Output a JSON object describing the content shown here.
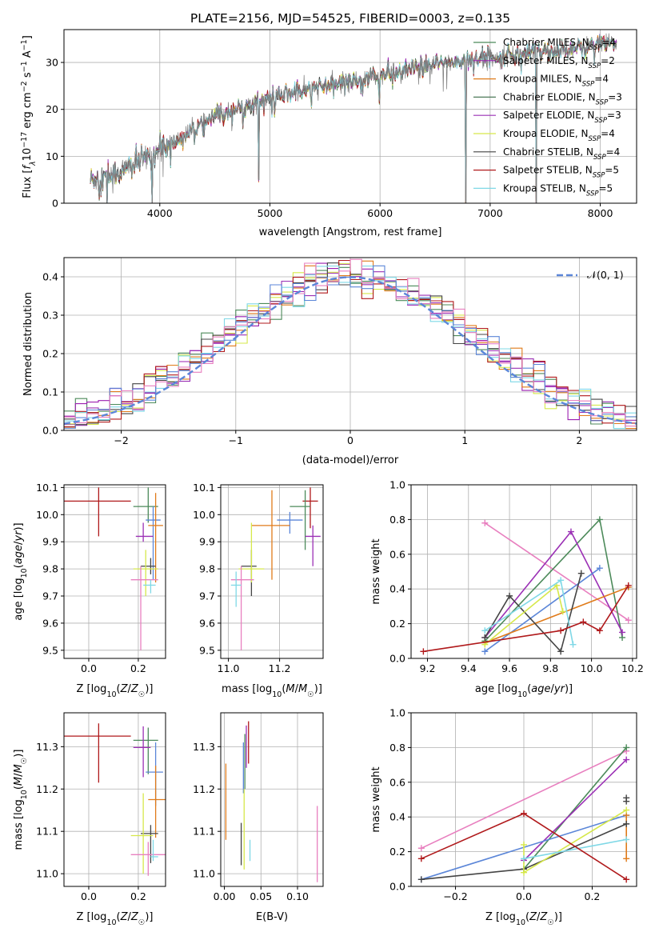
{
  "figure_title": "PLATE=2156, MJD=54525, FIBERID=0003, z=0.135",
  "colors": {
    "chabrier_miles": "#4c8a5a",
    "salpeter_miles": "#9b1fb0",
    "kroupa_miles": "#e07b1a",
    "chabrier_elodie": "#4e7a5a",
    "salpeter_elodie": "#9b30b5",
    "kroupa_elodie": "#d6e84a",
    "chabrier_stelib": "#444444",
    "salpeter_stelib": "#b0191b",
    "kroupa_stelib": "#7fd8e6",
    "blue": "#5b86d8",
    "pink": "#e87fbf",
    "normal_curve": "#5b86d8",
    "grid": "#b0b0b0"
  },
  "chart_data": [
    {
      "id": "spectrum",
      "type": "line",
      "xlabel": "wavelength [Angstrom, rest frame]",
      "ylabel": "Flux [f_λ10^-17 erg cm^-2 s^-1 A^-1]",
      "xlim": [
        3130,
        8330
      ],
      "ylim": [
        0,
        37
      ],
      "xticks": [
        4000,
        5000,
        6000,
        7000,
        8000
      ],
      "yticks": [
        0,
        10,
        20,
        30
      ],
      "legend": "top-right",
      "legend_entries": [
        {
          "label": "Chabrier MILES, N",
          "sub": "SSP",
          "tail": "=4",
          "color": "chabrier_miles"
        },
        {
          "label": "Salpeter MILES, N",
          "sub": "SSP",
          "tail": "=2",
          "color": "salpeter_miles"
        },
        {
          "label": "Kroupa MILES, N",
          "sub": "SSP",
          "tail": "=4",
          "color": "kroupa_miles"
        },
        {
          "label": "Chabrier ELODIE, N",
          "sub": "SSP",
          "tail": "=3",
          "color": "chabrier_elodie"
        },
        {
          "label": "Salpeter ELODIE, N",
          "sub": "SSP",
          "tail": "=3",
          "color": "salpeter_elodie"
        },
        {
          "label": "Kroupa ELODIE, N",
          "sub": "SSP",
          "tail": "=4",
          "color": "kroupa_elodie"
        },
        {
          "label": "Chabrier STELIB, N",
          "sub": "SSP",
          "tail": "=4",
          "color": "chabrier_stelib"
        },
        {
          "label": "Salpeter STELIB, N",
          "sub": "SSP",
          "tail": "=5",
          "color": "salpeter_stelib"
        },
        {
          "label": "Kroupa STELIB, N",
          "sub": "SSP",
          "tail": "=5",
          "color": "kroupa_stelib"
        }
      ],
      "continuum_anchors": [
        [
          3400,
          5
        ],
        [
          3600,
          6.5
        ],
        [
          3800,
          8.5
        ],
        [
          4000,
          11.5
        ],
        [
          4200,
          14
        ],
        [
          4500,
          18.5
        ],
        [
          4800,
          21
        ],
        [
          5200,
          23.5
        ],
        [
          5600,
          25.5
        ],
        [
          6000,
          27.2
        ],
        [
          6500,
          29.5
        ],
        [
          7000,
          31.2
        ],
        [
          7500,
          32.5
        ],
        [
          8100,
          34
        ]
      ],
      "deep_drops": [
        [
          3520,
          0
        ],
        [
          3930,
          0
        ],
        [
          4900,
          5
        ],
        [
          6780,
          0
        ],
        [
          7420,
          0
        ]
      ]
    },
    {
      "id": "residuals",
      "type": "histogram",
      "xlabel": "(data-model)/error",
      "ylabel": "Normed distribution",
      "xlim": [
        -2.5,
        2.5
      ],
      "ylim": [
        0,
        0.45
      ],
      "xticks": [
        -2,
        -1,
        0,
        1,
        2
      ],
      "yticks": [
        0.0,
        0.1,
        0.2,
        0.3,
        0.4
      ],
      "legend": "top-right",
      "legend_label": "𝒩(0, 1)",
      "bin_width": 0.1
    },
    {
      "id": "age_vs_Z",
      "type": "errorbar",
      "xlabel": "Z [log10(Z/Z☉)]",
      "ylabel": "age  [log10(age/yr)]",
      "xlim": [
        -0.1,
        0.31
      ],
      "ylim": [
        9.47,
        10.11
      ],
      "xticks": [
        0.0,
        0.2
      ],
      "yticks": [
        9.5,
        9.6,
        9.7,
        9.8,
        9.9,
        10.0,
        10.1
      ],
      "points": [
        {
          "x": 0.04,
          "y": 10.05,
          "xerr": [
            0.14,
            0.13
          ],
          "yerr": [
            0.13,
            0.05
          ],
          "color": "salpeter_stelib"
        },
        {
          "x": 0.24,
          "y": 10.03,
          "xerr": [
            0.06,
            0.04
          ],
          "yerr": [
            0.06,
            0.07
          ],
          "color": "chabrier_miles"
        },
        {
          "x": 0.26,
          "y": 9.98,
          "xerr": [
            0.03,
            0.03
          ],
          "yerr": [
            0.22,
            0.05
          ],
          "color": "blue"
        },
        {
          "x": 0.27,
          "y": 9.96,
          "xerr": [
            0.03,
            0.03
          ],
          "yerr": [
            0.21,
            0.12
          ],
          "color": "kroupa_miles"
        },
        {
          "x": 0.22,
          "y": 9.92,
          "xerr": [
            0.03,
            0.04
          ],
          "yerr": [
            0.02,
            0.05
          ],
          "color": "salpeter_elodie"
        },
        {
          "x": 0.25,
          "y": 9.81,
          "xerr": [
            0.04,
            0.02
          ],
          "yerr": [
            0.03,
            0.03
          ],
          "color": "chabrier_stelib"
        },
        {
          "x": 0.23,
          "y": 9.8,
          "xerr": [
            0.05,
            0.05
          ],
          "yerr": [
            0.1,
            0.07
          ],
          "color": "kroupa_elodie"
        },
        {
          "x": 0.21,
          "y": 9.76,
          "xerr": [
            0.04,
            0.07
          ],
          "yerr": [
            0.26,
            0.05
          ],
          "color": "pink"
        },
        {
          "x": 0.25,
          "y": 9.74,
          "xerr": [
            0.03,
            0.02
          ],
          "yerr": [
            0.03,
            0.02
          ],
          "color": "kroupa_stelib"
        }
      ]
    },
    {
      "id": "age_vs_mass",
      "type": "errorbar",
      "xlabel": "mass [log10(M/M☉)]",
      "ylabel": "",
      "xlim": [
        10.97,
        11.37
      ],
      "ylim": [
        9.47,
        10.11
      ],
      "xticks": [
        11.0,
        11.2
      ],
      "yticks": [
        9.5,
        9.6,
        9.7,
        9.8,
        9.9,
        10.0,
        10.1
      ],
      "points": [
        {
          "x": 11.32,
          "y": 10.05,
          "xerr": [
            0.03,
            0.03
          ],
          "yerr": [
            0.1,
            0.05
          ],
          "color": "salpeter_stelib"
        },
        {
          "x": 11.3,
          "y": 10.03,
          "xerr": [
            0.06,
            0.02
          ],
          "yerr": [
            0.16,
            0.06
          ],
          "color": "chabrier_miles"
        },
        {
          "x": 11.24,
          "y": 9.98,
          "xerr": [
            0.05,
            0.05
          ],
          "yerr": [
            0.05,
            0.03
          ],
          "color": "blue"
        },
        {
          "x": 11.17,
          "y": 9.96,
          "xerr": [
            0.08,
            0.07
          ],
          "yerr": [
            0.2,
            0.13
          ],
          "color": "kroupa_miles"
        },
        {
          "x": 11.33,
          "y": 9.92,
          "xerr": [
            0.03,
            0.03
          ],
          "yerr": [
            0.11,
            0.04
          ],
          "color": "salpeter_elodie"
        },
        {
          "x": 11.09,
          "y": 9.81,
          "xerr": [
            0.04,
            0.02
          ],
          "yerr": [
            0.11,
            0.06
          ],
          "color": "chabrier_stelib"
        },
        {
          "x": 11.09,
          "y": 9.8,
          "xerr": [
            0.05,
            0.05
          ],
          "yerr": [
            0.05,
            0.17
          ],
          "color": "kroupa_elodie"
        },
        {
          "x": 11.05,
          "y": 9.76,
          "xerr": [
            0.04,
            0.05
          ],
          "yerr": [
            0.26,
            0.05
          ],
          "color": "pink"
        },
        {
          "x": 11.03,
          "y": 9.74,
          "xerr": [
            0.02,
            0.02
          ],
          "yerr": [
            0.08,
            0.05
          ],
          "color": "kroupa_stelib"
        }
      ]
    },
    {
      "id": "mass_weight_vs_age",
      "type": "line",
      "xlabel": "age  [log10(age/yr)]",
      "ylabel": "mass weight",
      "xlim": [
        9.12,
        10.22
      ],
      "ylim": [
        0,
        1
      ],
      "xticks": [
        9.2,
        9.4,
        9.6,
        9.8,
        10.0,
        10.2
      ],
      "yticks": [
        0.0,
        0.2,
        0.4,
        0.6,
        0.8,
        1.0
      ],
      "series": [
        {
          "color": "pink",
          "x": [
            9.48,
            10.18
          ],
          "y": [
            0.78,
            0.22
          ]
        },
        {
          "color": "chabrier_miles",
          "x": [
            9.48,
            10.04,
            10.15
          ],
          "y": [
            0.1,
            0.8,
            0.12
          ]
        },
        {
          "color": "salpeter_elodie",
          "x": [
            9.48,
            9.9,
            10.15
          ],
          "y": [
            0.12,
            0.73,
            0.15
          ]
        },
        {
          "color": "blue",
          "x": [
            9.48,
            10.04
          ],
          "y": [
            0.04,
            0.52
          ]
        },
        {
          "color": "kroupa_miles",
          "x": [
            9.48,
            10.18
          ],
          "y": [
            0.09,
            0.41
          ]
        },
        {
          "color": "chabrier_stelib",
          "x": [
            9.48,
            9.6,
            9.85,
            9.95
          ],
          "y": [
            0.12,
            0.36,
            0.04,
            0.49
          ]
        },
        {
          "color": "kroupa_elodie",
          "x": [
            9.48,
            9.83,
            9.86
          ],
          "y": [
            0.08,
            0.42,
            0.27
          ]
        },
        {
          "color": "kroupa_stelib",
          "x": [
            9.48,
            9.85,
            9.91
          ],
          "y": [
            0.16,
            0.45,
            0.08
          ]
        },
        {
          "color": "salpeter_stelib",
          "x": [
            9.18,
            9.85,
            9.96,
            10.04,
            10.18
          ],
          "y": [
            0.04,
            0.16,
            0.21,
            0.16,
            0.42
          ]
        }
      ]
    },
    {
      "id": "mass_vs_Z",
      "type": "errorbar",
      "xlabel": "Z [log10(Z/Z☉)]",
      "ylabel": "mass [log10(M/M☉)]",
      "xlim": [
        -0.1,
        0.31
      ],
      "ylim": [
        10.97,
        11.38
      ],
      "xticks": [
        0.0,
        0.2
      ],
      "yticks": [
        11.0,
        11.1,
        11.2,
        11.3
      ],
      "points": [
        {
          "x": 0.04,
          "y": 11.325,
          "xerr": [
            0.14,
            0.13
          ],
          "yerr": [
            0.11,
            0.03
          ],
          "color": "salpeter_stelib"
        },
        {
          "x": 0.24,
          "y": 11.315,
          "xerr": [
            0.06,
            0.04
          ],
          "yerr": [
            0.08,
            0.03
          ],
          "color": "chabrier_miles"
        },
        {
          "x": 0.22,
          "y": 11.298,
          "xerr": [
            0.04,
            0.03
          ],
          "yerr": [
            0.07,
            0.05
          ],
          "color": "salpeter_elodie"
        },
        {
          "x": 0.27,
          "y": 11.24,
          "xerr": [
            0.04,
            0.03
          ],
          "yerr": [
            0.08,
            0.07
          ],
          "color": "blue"
        },
        {
          "x": 0.27,
          "y": 11.175,
          "xerr": [
            0.03,
            0.04
          ],
          "yerr": [
            0.09,
            0.08
          ],
          "color": "kroupa_miles"
        },
        {
          "x": 0.25,
          "y": 11.095,
          "xerr": [
            0.04,
            0.03
          ],
          "yerr": [
            0.07,
            0.02
          ],
          "color": "chabrier_stelib"
        },
        {
          "x": 0.22,
          "y": 11.09,
          "xerr": [
            0.05,
            0.04
          ],
          "yerr": [
            0.09,
            0.1
          ],
          "color": "kroupa_elodie"
        },
        {
          "x": 0.24,
          "y": 11.045,
          "xerr": [
            0.07,
            0.07
          ],
          "yerr": [
            0.05,
            0.03
          ],
          "color": "pink"
        },
        {
          "x": 0.26,
          "y": 11.04,
          "xerr": [
            0.01,
            0.02
          ],
          "yerr": [
            0.01,
            0.04
          ],
          "color": "kroupa_stelib"
        }
      ]
    },
    {
      "id": "mass_vs_ebv",
      "type": "errorbar",
      "xlabel": "E(B-V)",
      "ylabel": "",
      "xlim": [
        -0.005,
        0.135
      ],
      "ylim": [
        10.97,
        11.38
      ],
      "xticks": [
        0.0,
        0.05,
        0.1
      ],
      "yticks": [
        11.0,
        11.1,
        11.2,
        11.3
      ],
      "points": [
        {
          "x": 0.033,
          "y": 11.31,
          "xerr": [
            0,
            0
          ],
          "yerr": [
            0.05,
            0.05
          ],
          "color": "salpeter_stelib"
        },
        {
          "x": 0.03,
          "y": 11.3,
          "xerr": [
            0,
            0
          ],
          "yerr": [
            0.05,
            0.05
          ],
          "color": "salpeter_elodie"
        },
        {
          "x": 0.028,
          "y": 11.25,
          "xerr": [
            0,
            0
          ],
          "yerr": [
            0.05,
            0.08
          ],
          "color": "chabrier_miles"
        },
        {
          "x": 0.026,
          "y": 11.25,
          "xerr": [
            0,
            0
          ],
          "yerr": [
            0.06,
            0.06
          ],
          "color": "blue"
        },
        {
          "x": 0.002,
          "y": 11.17,
          "xerr": [
            0,
            0
          ],
          "yerr": [
            0.09,
            0.09
          ],
          "color": "kroupa_miles"
        },
        {
          "x": 0.023,
          "y": 11.07,
          "xerr": [
            0,
            0
          ],
          "yerr": [
            0.05,
            0.05
          ],
          "color": "chabrier_stelib"
        },
        {
          "x": 0.027,
          "y": 11.1,
          "xerr": [
            0,
            0
          ],
          "yerr": [
            0.09,
            0.1
          ],
          "color": "kroupa_elodie"
        },
        {
          "x": 0.035,
          "y": 11.04,
          "xerr": [
            0,
            0
          ],
          "yerr": [
            0.01,
            0.04
          ],
          "color": "kroupa_stelib"
        },
        {
          "x": 0.127,
          "y": 11.07,
          "xerr": [
            0,
            0
          ],
          "yerr": [
            0.09,
            0.09
          ],
          "color": "pink"
        }
      ]
    },
    {
      "id": "mass_weight_vs_Z",
      "type": "line",
      "xlabel": "Z [log10(Z/Z☉)]",
      "ylabel": "mass weight",
      "xlim": [
        -0.33,
        0.33
      ],
      "ylim": [
        0,
        1
      ],
      "xticks": [
        -0.2,
        0.0,
        0.2
      ],
      "yticks": [
        0.0,
        0.2,
        0.4,
        0.6,
        0.8,
        1.0
      ],
      "series": [
        {
          "color": "pink",
          "x": [
            -0.3,
            0.3
          ],
          "y": [
            0.22,
            0.78
          ]
        },
        {
          "color": "chabrier_miles",
          "x": [
            0.0,
            0.3
          ],
          "y": [
            0.1,
            0.8
          ]
        },
        {
          "color": "salpeter_elodie",
          "x": [
            0.0,
            0.3
          ],
          "y": [
            0.15,
            0.73
          ]
        },
        {
          "color": "blue",
          "x": [
            -0.3,
            0.3
          ],
          "y": [
            0.04,
            0.41
          ]
        },
        {
          "color": "kroupa_miles",
          "x": [
            0.3,
            0.3
          ],
          "y": [
            0.16,
            0.41
          ]
        },
        {
          "color": "chabrier_stelib",
          "x": [
            -0.3,
            0.0,
            0.3
          ],
          "y": [
            0.04,
            0.1,
            0.36
          ]
        },
        {
          "color": "kroupa_elodie",
          "x": [
            0.0,
            0.0,
            0.3
          ],
          "y": [
            0.24,
            0.08,
            0.44
          ]
        },
        {
          "color": "kroupa_stelib",
          "x": [
            0.0,
            0.3
          ],
          "y": [
            0.16,
            0.27
          ]
        },
        {
          "color": "salpeter_stelib",
          "x": [
            -0.3,
            0.0,
            0.3
          ],
          "y": [
            0.16,
            0.42,
            0.04
          ]
        },
        {
          "color": "chabrier_stelib",
          "x": [
            0.3,
            0.3
          ],
          "y": [
            0.49,
            0.51
          ]
        }
      ]
    }
  ]
}
